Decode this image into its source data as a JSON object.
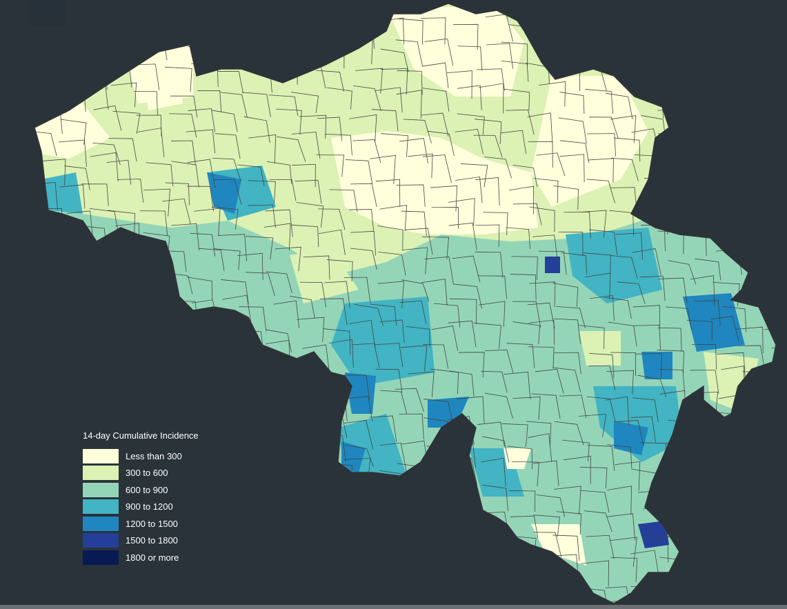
{
  "background_color": "#2a333a",
  "map": {
    "region": "Belgium municipalities",
    "legend": {
      "title": "14-day Cumulative Incidence",
      "items": [
        {
          "label": "Less than 300",
          "color": "#ffffdc"
        },
        {
          "label": "300 to 600",
          "color": "#dcf1b4"
        },
        {
          "label": "600 to 900",
          "color": "#94d5b8"
        },
        {
          "label": "900 to 1200",
          "color": "#42b4c3"
        },
        {
          "label": "1200 to 1500",
          "color": "#1f86bf"
        },
        {
          "label": "1500 to 1800",
          "color": "#233f99"
        },
        {
          "label": "1800 or more",
          "color": "#081a54"
        }
      ]
    }
  }
}
